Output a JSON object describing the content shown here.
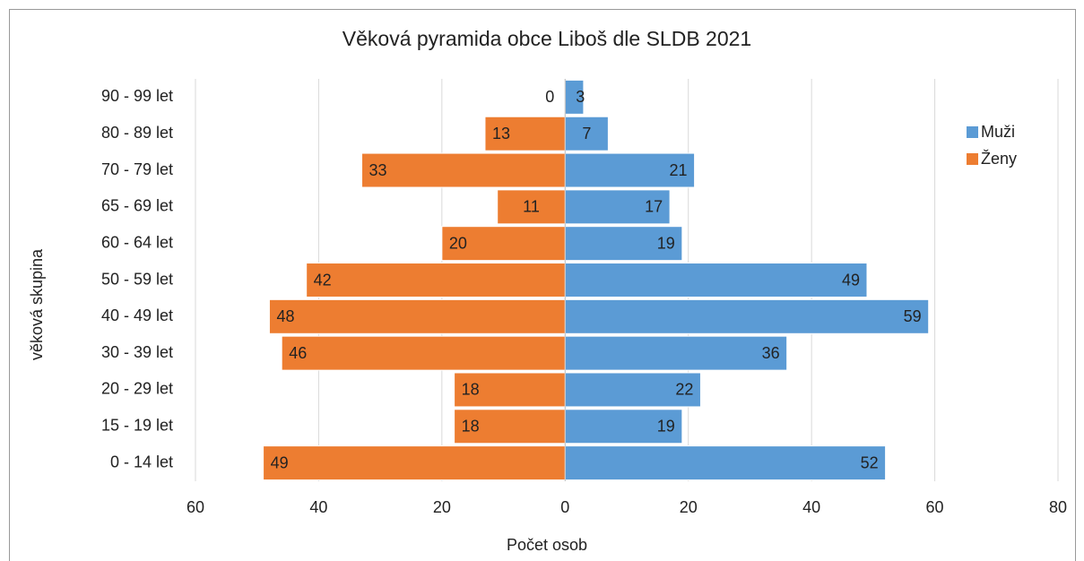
{
  "chart_data": {
    "type": "pyramid",
    "title": "Věková pyramida obce Liboš dle SLDB 2021",
    "x_label": "Počet osob",
    "y_label": "věková skupina",
    "categories": [
      "0 - 14 let",
      "15 - 19 let",
      "20 - 29 let",
      "30 - 39 let",
      "40 - 49 let",
      "50 - 59 let",
      "60 - 64 let",
      "65 - 69 let",
      "70 - 79 let",
      "80 - 89 let",
      "90 - 99 let"
    ],
    "series": [
      {
        "name": "Muži",
        "color": "#5b9bd5",
        "side": "right",
        "values": [
          52,
          19,
          22,
          36,
          59,
          49,
          19,
          17,
          21,
          7,
          3
        ]
      },
      {
        "name": "Ženy",
        "color": "#ed7d31",
        "side": "left",
        "values": [
          49,
          18,
          18,
          46,
          48,
          42,
          20,
          11,
          33,
          13,
          0
        ]
      }
    ],
    "xlim": [
      -60,
      80
    ],
    "xticks": [
      {
        "value": -60,
        "label": "60"
      },
      {
        "value": -40,
        "label": "40"
      },
      {
        "value": -20,
        "label": "20"
      },
      0,
      20,
      40,
      60,
      80
    ],
    "grid": true,
    "legend": "right"
  }
}
